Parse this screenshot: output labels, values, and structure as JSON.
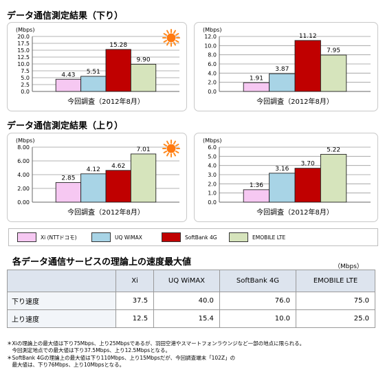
{
  "sections": {
    "download_title": "データ通信測定結果（下り）",
    "upload_title": "データ通信測定結果（上り）"
  },
  "chart_data": [
    {
      "type": "bar",
      "ylabel": "(Mbps)",
      "ylim": [
        0,
        20
      ],
      "yticks": [
        "0.0",
        "2.5",
        "5.0",
        "7.5",
        "10.0",
        "12.5",
        "15.0",
        "17.5",
        "20.0"
      ],
      "xlabel": "今回調査（2012年8月）",
      "categories": [
        "Xi (NTTドコモ)",
        "UQ WiMAX",
        "SoftBank 4G",
        "EMOBILE LTE"
      ],
      "values": [
        4.43,
        5.51,
        15.28,
        9.9
      ],
      "labels": [
        "4.43",
        "5.51",
        "15.28",
        "9.90"
      ],
      "icon": "sun-icon",
      "grid": true
    },
    {
      "type": "bar",
      "ylabel": "(Mbps)",
      "ylim": [
        0,
        12
      ],
      "yticks": [
        "0.0",
        "2.0",
        "4.0",
        "6.0",
        "8.0",
        "10.0",
        "12.0"
      ],
      "xlabel": "今回調査（2012年8月）",
      "categories": [
        "Xi (NTTドコモ)",
        "UQ WiMAX",
        "SoftBank 4G",
        "EMOBILE LTE"
      ],
      "values": [
        1.91,
        3.87,
        11.12,
        7.95
      ],
      "labels": [
        "1.91",
        "3.87",
        "11.12",
        "7.95"
      ],
      "icon": "moon-icon",
      "grid": true
    },
    {
      "type": "bar",
      "ylabel": "(Mbps)",
      "ylim": [
        0,
        8
      ],
      "yticks": [
        "0.00",
        "2.00",
        "4.00",
        "6.00",
        "8.00"
      ],
      "xlabel": "今回調査（2012年8月）",
      "categories": [
        "Xi (NTTドコモ)",
        "UQ WiMAX",
        "SoftBank 4G",
        "EMOBILE LTE"
      ],
      "values": [
        2.85,
        4.12,
        4.62,
        7.01
      ],
      "labels": [
        "2.85",
        "4.12",
        "4.62",
        "7.01"
      ],
      "icon": "sun-icon",
      "grid": true
    },
    {
      "type": "bar",
      "ylabel": "(Mbps)",
      "ylim": [
        0,
        6
      ],
      "yticks": [
        "0.0",
        "1.0",
        "2.0",
        "3.0",
        "4.0",
        "5.0",
        "6.0"
      ],
      "xlabel": "今回調査（2012年8月）",
      "categories": [
        "Xi (NTTドコモ)",
        "UQ WiMAX",
        "SoftBank 4G",
        "EMOBILE LTE"
      ],
      "values": [
        1.36,
        3.16,
        3.7,
        5.22
      ],
      "labels": [
        "1.36",
        "3.16",
        "3.70",
        "5.22"
      ],
      "icon": "moon-icon",
      "grid": true
    }
  ],
  "legend": [
    {
      "label": "Xi (NTTドコモ)",
      "color": "#f6c8f2"
    },
    {
      "label": "UQ WiMAX",
      "color": "#a8d4e6"
    },
    {
      "label": "SoftBank 4G",
      "color": "#c00000"
    },
    {
      "label": "EMOBILE LTE",
      "color": "#d6e4bc"
    }
  ],
  "table": {
    "title": "各データ通信サービスの理論上の速度最大値",
    "unit": "（Mbps）",
    "headers": [
      "",
      "Xi",
      "UQ WiMAX",
      "SoftBank 4G",
      "EMOBILE LTE"
    ],
    "rows": [
      {
        "label": "下り速度",
        "values": [
          "37.5",
          "40.0",
          "76.0",
          "75.0"
        ]
      },
      {
        "label": "上り速度",
        "values": [
          "12.5",
          "15.4",
          "10.0",
          "25.0"
        ]
      }
    ]
  },
  "notes": [
    "＊Xiの理論上の最大値は下り75Mbps、上り25Mbpsであるが、羽田空港やスマートフォンラウンジなど一部の地点に限られる。",
    "　今回測定地点での最大値は下り37.5Mbps、上り12.5Mbpsとなる。",
    "＊SoftBank 4Gの理論上の最大値は下り110Mbps、上り15Mbpsだが、今回調査端末「102Z」の",
    "　最大値は、下り76Mbps、上り10Mbpsとなる。"
  ]
}
